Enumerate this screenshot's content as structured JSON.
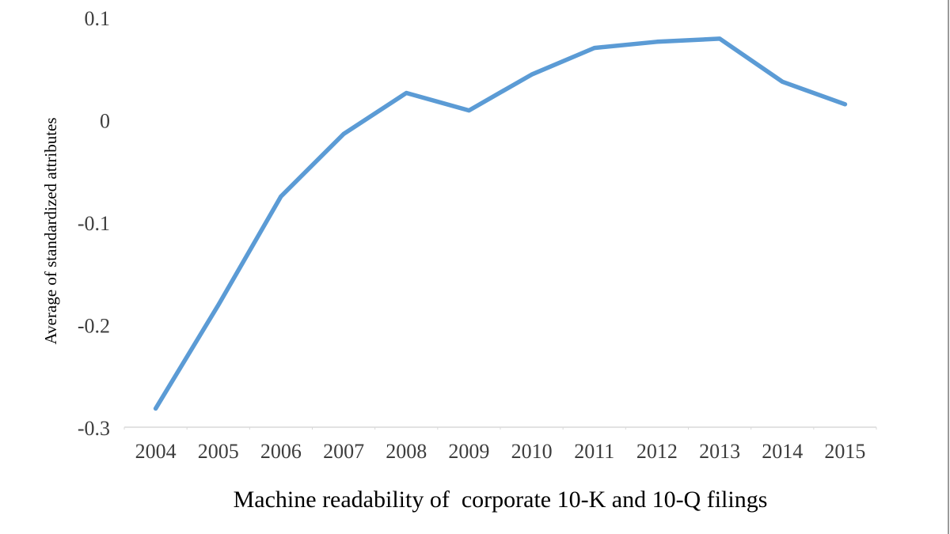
{
  "figure": {
    "y_axis_title": "Average of standardized attributes",
    "title": "Machine readability of  corporate 10-K and 10-Q filings"
  },
  "chart_data": {
    "type": "line",
    "categories": [
      "2004",
      "2005",
      "2006",
      "2007",
      "2008",
      "2009",
      "2010",
      "2011",
      "2012",
      "2013",
      "2014",
      "2015"
    ],
    "values": [
      -0.281,
      -0.18,
      -0.074,
      -0.013,
      0.027,
      0.01,
      0.045,
      0.071,
      0.077,
      0.08,
      0.038,
      0.016
    ],
    "title": "Machine readability of  corporate 10-K and 10-Q filings",
    "xlabel": "Machine readability of  corporate 10-K and 10-Q filings",
    "ylabel": "Average of standardized attributes",
    "ylim": [
      -0.3,
      0.1
    ],
    "yticks": [
      0.1,
      0,
      -0.1,
      -0.2,
      -0.3
    ],
    "ytick_labels": [
      "0.1",
      "0",
      "-0.1",
      "-0.2",
      "-0.3"
    ],
    "grid": false,
    "legend": "none",
    "colors": {
      "line": "#5B9BD5",
      "axis_line": "#D9D9D9",
      "tick_labels": "#3D3D3D",
      "titles": "#000000"
    }
  }
}
